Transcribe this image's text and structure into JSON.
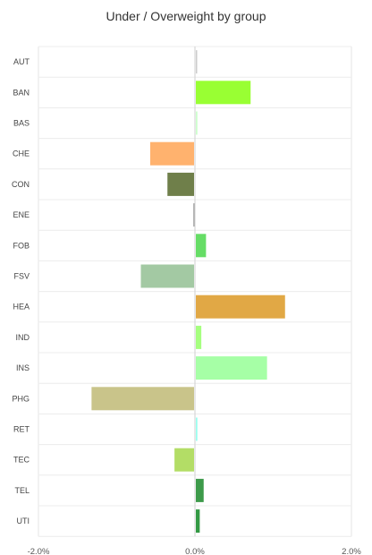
{
  "chart_data": {
    "type": "bar",
    "orientation": "horizontal",
    "title": "Under / Overweight by group",
    "xlabel": "",
    "ylabel": "",
    "xlim": [
      -2.0,
      2.0
    ],
    "x_ticks": [
      "-2.0%",
      "0.0%",
      "2.0%"
    ],
    "x_tick_values": [
      -2.0,
      0.0,
      2.0
    ],
    "grid": true,
    "legend": "none",
    "categories": [
      "AUT",
      "BAN",
      "BAS",
      "CHE",
      "CON",
      "ENE",
      "FOB",
      "FSV",
      "HEA",
      "IND",
      "INS",
      "PHG",
      "RET",
      "TEC",
      "TEL",
      "UTI"
    ],
    "values": [
      0.0,
      0.7,
      0.02,
      -0.56,
      -0.34,
      -0.01,
      0.13,
      -0.68,
      1.14,
      0.07,
      0.91,
      -1.31,
      0.02,
      -0.25,
      0.1,
      0.05
    ],
    "colors": [
      "#cccccc",
      "#99ff33",
      "#ccffcc",
      "#ffb26e",
      "#6f7f4a",
      "#aaaaaa",
      "#66dd66",
      "#a3c9a3",
      "#e1a845",
      "#a6ff7f",
      "#a6ffa6",
      "#c9c48a",
      "#99ffee",
      "#b3dd66",
      "#3d9a4a",
      "#339944"
    ]
  }
}
